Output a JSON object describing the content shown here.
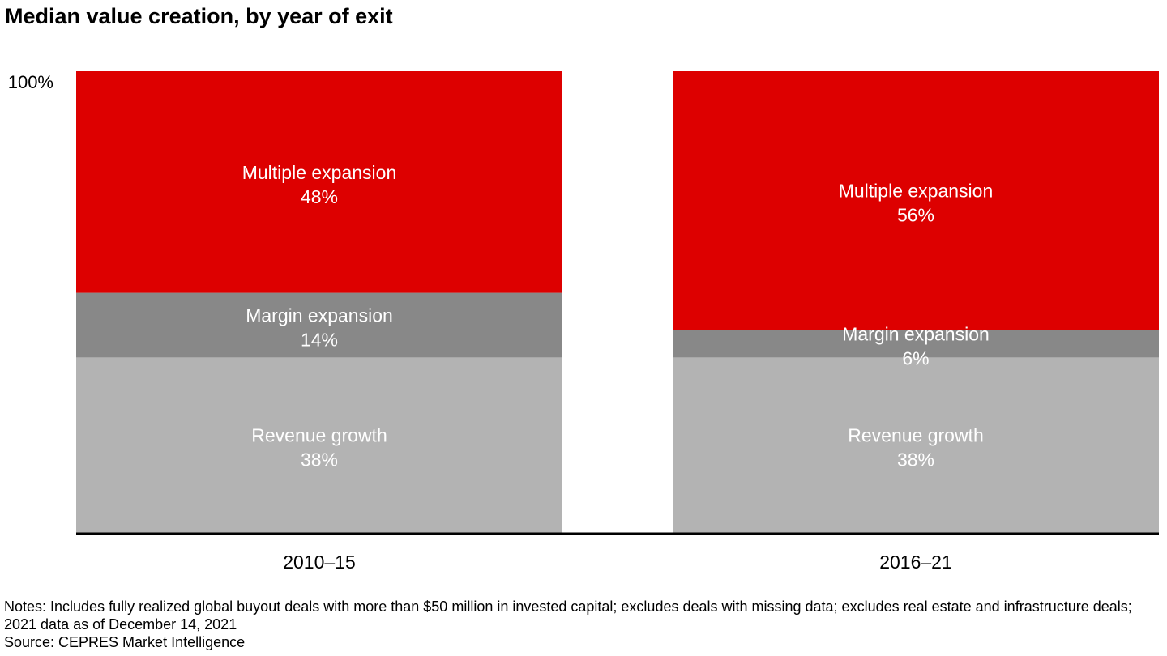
{
  "header": {
    "title": "Median value creation, by year of exit"
  },
  "chart_data": {
    "type": "bar",
    "stacked": true,
    "title": "Median value creation, by year of exit",
    "xlabel": "",
    "ylabel": "",
    "ylim": [
      0,
      100
    ],
    "y_tick_labels": [
      "100%"
    ],
    "categories": [
      "2010–15",
      "2016–21"
    ],
    "series": [
      {
        "name": "Revenue growth",
        "values": [
          38,
          38
        ],
        "labels": [
          "38%",
          "38%"
        ],
        "color": "#b3b3b3"
      },
      {
        "name": "Margin expansion",
        "values": [
          14,
          6
        ],
        "labels": [
          "14%",
          "6%"
        ],
        "color": "#888888"
      },
      {
        "name": "Multiple expansion",
        "values": [
          48,
          56
        ],
        "labels": [
          "48%",
          "56%"
        ],
        "color": "#dd0000"
      }
    ],
    "legend": "none",
    "grid": false
  },
  "footer": {
    "notes": "Notes: Includes fully realized global buyout deals with more than $50 million in invested capital; excludes deals with missing data; excludes real estate and infrastructure deals; 2021 data as of December 14, 2021",
    "source": "Source: CEPRES Market Intelligence"
  }
}
